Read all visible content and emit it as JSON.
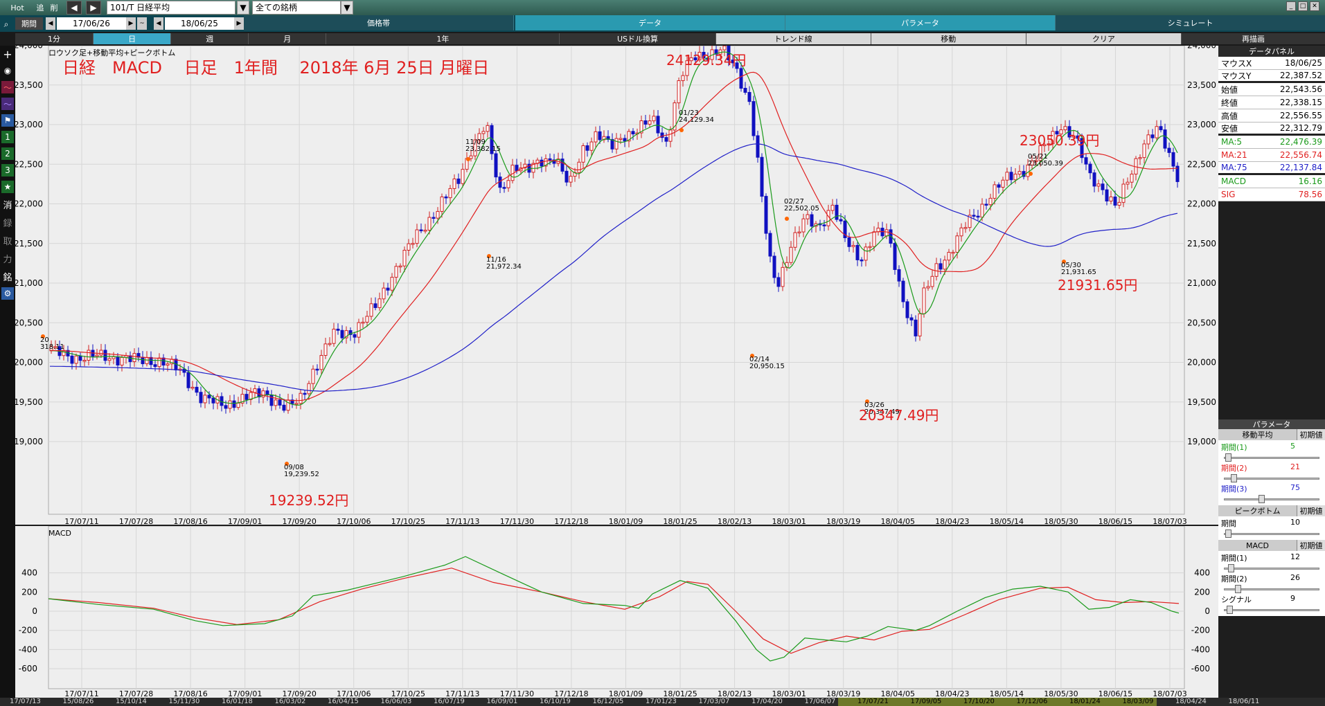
{
  "topbar": {
    "hot": "Hot",
    "add": "追",
    "del": "削",
    "symbol": "101/T 日経平均",
    "universe": "全ての銘柄",
    "tabs": [
      "価格帯",
      "データ",
      "パラメータ",
      "シミュレート"
    ]
  },
  "toolbar": {
    "period_label": "期間",
    "from": "17/06/26",
    "tilde": "~",
    "to": "18/06/25",
    "buttons": [
      "1分",
      "日",
      "週",
      "月",
      "1年",
      "USドル換算",
      "トレンド線",
      "移動",
      "クリア",
      "再描画"
    ]
  },
  "chart": {
    "legend": "ロウソク足+移動平均+ピークボトム",
    "title": "日経　MACD　 日足　1年間　 2018年 6月 25日 月曜日",
    "y_ticks": [
      "24,000",
      "23,500",
      "23,000",
      "22,500",
      "22,000",
      "21,500",
      "21,000",
      "20,500",
      "20,000",
      "19,500",
      "19,000"
    ],
    "x_ticks": [
      "17/07/11",
      "17/07/28",
      "17/08/16",
      "17/09/01",
      "17/09/20",
      "17/10/06",
      "17/10/25",
      "17/11/13",
      "17/11/30",
      "17/12/18",
      "18/01/09",
      "18/01/25",
      "18/02/13",
      "18/03/01",
      "18/03/19",
      "18/04/05",
      "18/04/23",
      "18/05/14",
      "18/05/30",
      "18/06/15",
      "18/07/03"
    ],
    "peak_labels": [
      {
        "date": "11/09",
        "value": "23,382.15"
      },
      {
        "date": "11/16",
        "value": "21,972.34"
      },
      {
        "date": "01/23",
        "value": "24,129.34"
      },
      {
        "date": "02/14",
        "value": "20,950.15"
      },
      {
        "date": "02/27",
        "value": "22,502.05"
      },
      {
        "date": "03/26",
        "value": "20,347.49"
      },
      {
        "date": "05/21",
        "value": "23,050.39"
      },
      {
        "date": "05/30",
        "value": "21,931.65"
      },
      {
        "date": "09/08",
        "value": "19,239.52"
      },
      {
        "date": "20",
        "value": "318.11"
      }
    ],
    "annotations": [
      "24129.34円",
      "23050.39円",
      "21931.65円",
      "20347.49円",
      "19239.52円"
    ],
    "colors": {
      "ma5": "#1a9a1a",
      "ma21": "#e02020",
      "ma75": "#2020c8",
      "up": "#d02020",
      "down": "#1010c0",
      "annotation": "#e02020"
    }
  },
  "macd": {
    "label": "MACD",
    "y_ticks": [
      "400",
      "200",
      "0",
      "-200",
      "-400",
      "-600"
    ]
  },
  "bottom_axis": [
    "17/07/13",
    "15/08/26",
    "15/10/14",
    "15/11/30",
    "16/01/18",
    "16/03/02",
    "16/04/15",
    "16/06/03",
    "16/07/19",
    "16/09/01",
    "16/10/19",
    "16/12/05",
    "17/01/23",
    "17/03/07",
    "17/04/20",
    "17/06/07",
    "17/07/21",
    "17/09/05",
    "17/10/20",
    "17/12/06",
    "18/01/24",
    "18/03/09",
    "18/04/24",
    "18/06/11"
  ],
  "data_panel": {
    "title": "データパネル",
    "rows": [
      {
        "k": "マウスX",
        "v": "18/06/25"
      },
      {
        "k": "マウスY",
        "v": "22,387.52"
      },
      {
        "k": "始値",
        "v": "22,543.56"
      },
      {
        "k": "終値",
        "v": "22,338.15"
      },
      {
        "k": "高値",
        "v": "22,556.55"
      },
      {
        "k": "安値",
        "v": "22,312.79"
      }
    ],
    "ma_rows": [
      {
        "k": "MA:5",
        "v": "22,476.39",
        "c": "#1a9a1a"
      },
      {
        "k": "MA:21",
        "v": "22,556.74",
        "c": "#e02020"
      },
      {
        "k": "MA:75",
        "v": "22,137.84",
        "c": "#2020c8"
      }
    ],
    "macd_rows": [
      {
        "k": "MACD",
        "v": "16.16",
        "c": "#1a9a1a"
      },
      {
        "k": "SIG",
        "v": "78.56",
        "c": "#e02020"
      }
    ]
  },
  "param_panel": {
    "title": "パラメータ",
    "ma_title": "移動平均",
    "reset": "初期値",
    "ma": [
      {
        "k": "期間(1)",
        "v": "5",
        "c": "#1a9a1a"
      },
      {
        "k": "期間(2)",
        "v": "21",
        "c": "#e02020"
      },
      {
        "k": "期間(3)",
        "v": "75",
        "c": "#2020c8"
      }
    ],
    "pb_title": "ピークボトム",
    "pb": [
      {
        "k": "期間",
        "v": "10"
      }
    ],
    "macd_title": "MACD",
    "macd": [
      {
        "k": "期間(1)",
        "v": "12"
      },
      {
        "k": "期間(2)",
        "v": "26"
      },
      {
        "k": "シグナル",
        "v": "9"
      }
    ]
  },
  "left_tools": [
    "消",
    "録",
    "取",
    "力",
    "銘"
  ]
}
